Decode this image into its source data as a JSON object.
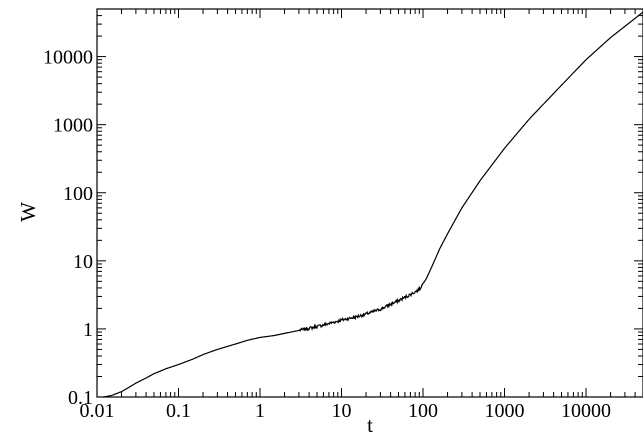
{
  "chart_data": {
    "type": "line",
    "xlabel": "t",
    "ylabel": "W",
    "xscale": "log",
    "yscale": "log",
    "xlim": [
      0.01,
      50000
    ],
    "ylim": [
      0.1,
      50000
    ],
    "grid": false,
    "legend": "none",
    "line_color": "#000000",
    "x_ticks": [
      {
        "value": 0.01,
        "label": "0.01"
      },
      {
        "value": 0.1,
        "label": "0.1"
      },
      {
        "value": 1,
        "label": "1"
      },
      {
        "value": 10,
        "label": "10"
      },
      {
        "value": 100,
        "label": "100"
      },
      {
        "value": 1000,
        "label": "1000"
      },
      {
        "value": 10000,
        "label": "10000"
      }
    ],
    "y_ticks": [
      {
        "value": 0.1,
        "label": "0.1"
      },
      {
        "value": 1,
        "label": "1"
      },
      {
        "value": 10,
        "label": "10"
      },
      {
        "value": 100,
        "label": "100"
      },
      {
        "value": 1000,
        "label": "1000"
      },
      {
        "value": 10000,
        "label": "10000"
      }
    ],
    "series": [
      {
        "x": [
          0.012,
          0.015,
          0.02,
          0.025,
          0.03,
          0.04,
          0.05,
          0.07,
          0.1,
          0.15,
          0.2,
          0.3,
          0.5,
          0.7,
          1,
          1.5,
          2,
          3,
          5,
          7,
          10,
          15,
          20,
          30,
          50,
          70,
          90,
          110,
          130,
          160,
          200,
          300,
          500,
          1000,
          2000,
          5000,
          10000,
          20000,
          50000
        ],
        "y": [
          0.1,
          0.105,
          0.12,
          0.14,
          0.16,
          0.19,
          0.22,
          0.26,
          0.3,
          0.36,
          0.42,
          0.5,
          0.6,
          0.68,
          0.75,
          0.8,
          0.86,
          0.95,
          1.08,
          1.2,
          1.35,
          1.5,
          1.65,
          1.95,
          2.6,
          3.2,
          3.8,
          5.5,
          8.5,
          15,
          25,
          60,
          150,
          450,
          1200,
          3800,
          9000,
          19000,
          45000
        ],
        "noise_from_x": 3,
        "noise_to_x": 100
      }
    ]
  }
}
